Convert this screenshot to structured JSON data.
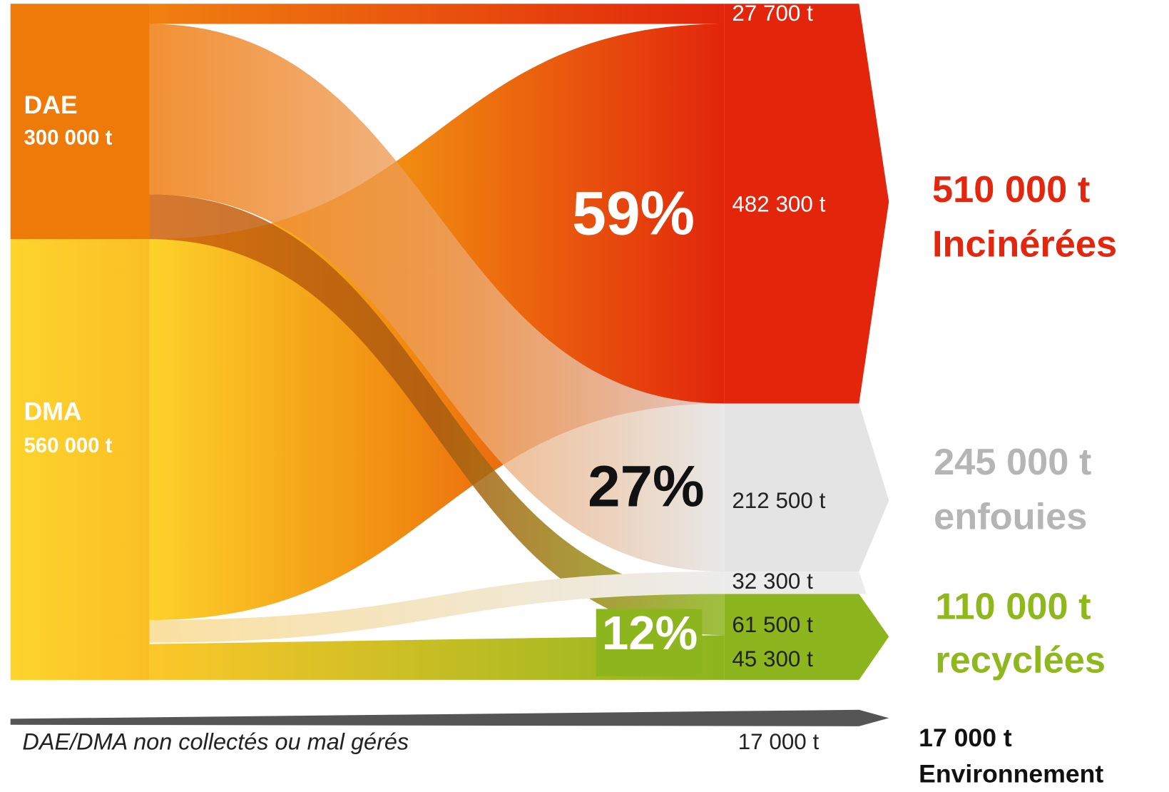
{
  "sources": [
    {
      "label": "DAE",
      "amount": "300 000 t"
    },
    {
      "label": "DMA",
      "amount": "560 000 t"
    }
  ],
  "flows": [
    "27 700 t",
    "482 300 t",
    "212 500 t",
    "32 300 t",
    "61 500 t",
    "45 300 t"
  ],
  "percentages": [
    "59%",
    "27%",
    "12%"
  ],
  "outputs": [
    {
      "amount": "510 000 t",
      "label": "Incinérées"
    },
    {
      "amount": "245 000 t",
      "label": "enfouies"
    },
    {
      "amount": "110 000 t",
      "label": "recyclées"
    },
    {
      "amount": "17 000 t",
      "label": "Environnement"
    }
  ],
  "loss": {
    "label": "DAE/DMA non collectés ou mal gérés",
    "amount": "17 000 t"
  }
}
